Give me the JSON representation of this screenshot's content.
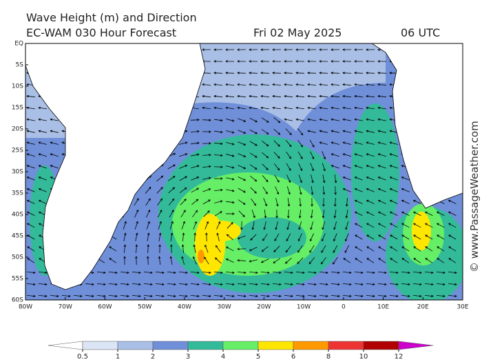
{
  "header": {
    "title": "Wave Height (m) and Direction",
    "model": "EC-WAM 030 Hour Forecast",
    "date": "Fri 02 May 2025",
    "time": "06 UTC"
  },
  "map": {
    "lat_labels": [
      "EQ",
      "5S",
      "10S",
      "15S",
      "20S",
      "25S",
      "30S",
      "35S",
      "40S",
      "45S",
      "50S",
      "55S",
      "60S"
    ],
    "lon_labels": [
      "80W",
      "70W",
      "60W",
      "50W",
      "40W",
      "30W",
      "20W",
      "10W",
      "0",
      "10E",
      "20E",
      "30E"
    ]
  },
  "colorbar": {
    "ticks": [
      0.5,
      1,
      2,
      3,
      4,
      5,
      6,
      8,
      10,
      12
    ],
    "colors": [
      "#ffffff",
      "#dce5f5",
      "#a9bfe6",
      "#6f8fd8",
      "#33bb99",
      "#66ee66",
      "#ffe600",
      "#ff9900",
      "#ee3333",
      "#b00000",
      "#cc00cc"
    ]
  },
  "watermark": "© www.PassageWeather.com"
}
